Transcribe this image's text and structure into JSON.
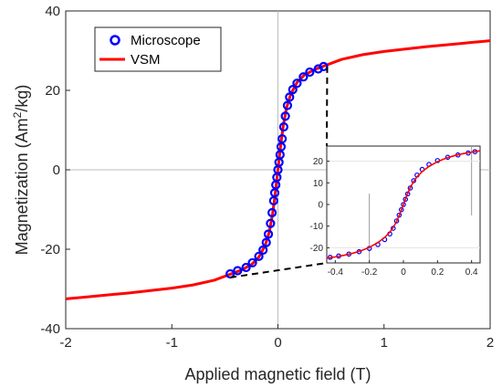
{
  "chart_data": [
    {
      "type": "line",
      "xlabel": "Applied magnetic field (T)",
      "ylabel_parts": [
        "Magnetization (Am",
        "2",
        "/kg)"
      ],
      "xlim": [
        -2,
        2
      ],
      "ylim": [
        -40,
        40
      ],
      "xticks": [
        "-2",
        "-1",
        "0",
        "1",
        "2"
      ],
      "yticks": [
        "-40",
        "-20",
        "0",
        "20",
        "40"
      ],
      "grid": "zero lines",
      "legend": {
        "placement": "top-left",
        "entries": [
          "Microscope",
          "VSM"
        ]
      },
      "series": [
        {
          "name": "Microscope",
          "style": "markers",
          "color": "#0000ff",
          "x": [
            -0.45,
            -0.38,
            -0.3,
            -0.24,
            -0.18,
            -0.14,
            -0.11,
            -0.09,
            -0.07,
            -0.055,
            -0.04,
            -0.03,
            -0.02,
            -0.01,
            0,
            0.01,
            0.02,
            0.03,
            0.04,
            0.055,
            0.07,
            0.09,
            0.11,
            0.14,
            0.18,
            0.24,
            0.3,
            0.38,
            0.43
          ],
          "y": [
            -26.2,
            -25.4,
            -24.6,
            -23.4,
            -21.8,
            -20.2,
            -18.3,
            -16.2,
            -13.5,
            -10.8,
            -7.8,
            -5.8,
            -3.8,
            -1.9,
            0,
            1.9,
            3.8,
            5.8,
            7.8,
            10.8,
            13.5,
            16.2,
            18.3,
            20.2,
            21.8,
            23.4,
            24.6,
            25.4,
            26.0
          ]
        },
        {
          "name": "VSM",
          "style": "line",
          "color": "#ff0000",
          "x": [
            -2,
            -1.8,
            -1.6,
            -1.4,
            -1.2,
            -1.0,
            -0.8,
            -0.6,
            -0.45,
            -0.35,
            -0.25,
            -0.18,
            -0.12,
            -0.08,
            -0.05,
            -0.03,
            0,
            0.03,
            0.05,
            0.08,
            0.12,
            0.18,
            0.25,
            0.35,
            0.45,
            0.6,
            0.8,
            1.0,
            1.2,
            1.4,
            1.6,
            1.8,
            2.0
          ],
          "y": [
            -32.5,
            -32.0,
            -31.5,
            -31.0,
            -30.4,
            -29.8,
            -29.0,
            -27.8,
            -26.3,
            -25.3,
            -23.9,
            -22.0,
            -19.0,
            -15.5,
            -11.0,
            -7.0,
            0,
            7.0,
            11.0,
            15.5,
            19.0,
            22.0,
            23.9,
            25.3,
            26.3,
            27.8,
            29.0,
            29.8,
            30.4,
            31.0,
            31.5,
            32.0,
            32.5
          ]
        }
      ]
    },
    {
      "type": "line",
      "role": "inset",
      "xlim": [
        -0.45,
        0.45
      ],
      "ylim": [
        -27,
        27
      ],
      "xticks": [
        "-0.4",
        "-0.2",
        "0",
        "0.2",
        "0.4"
      ],
      "yticks": [
        "-20",
        "-10",
        "0",
        "10",
        "20"
      ],
      "series": [
        {
          "name": "Microscope",
          "style": "markers",
          "color": "#0000ff",
          "x": [
            -0.43,
            -0.38,
            -0.32,
            -0.26,
            -0.2,
            -0.15,
            -0.11,
            -0.08,
            -0.06,
            -0.04,
            -0.025,
            -0.012,
            0,
            0.012,
            0.025,
            0.04,
            0.06,
            0.08,
            0.11,
            0.15,
            0.2,
            0.26,
            0.32,
            0.38,
            0.42
          ],
          "y": [
            -24.4,
            -23.8,
            -22.9,
            -21.8,
            -20.3,
            -18.5,
            -16.2,
            -13.6,
            -11.0,
            -7.6,
            -4.9,
            -2.4,
            0,
            2.4,
            4.9,
            7.6,
            11.0,
            13.6,
            16.2,
            18.5,
            20.3,
            21.8,
            22.9,
            23.8,
            24.4
          ]
        },
        {
          "name": "VSM",
          "style": "line",
          "color": "#ff0000",
          "x": [
            -0.45,
            -0.4,
            -0.35,
            -0.3,
            -0.25,
            -0.2,
            -0.15,
            -0.11,
            -0.08,
            -0.06,
            -0.04,
            -0.02,
            0,
            0.02,
            0.04,
            0.06,
            0.08,
            0.11,
            0.15,
            0.2,
            0.25,
            0.3,
            0.35,
            0.4,
            0.45
          ],
          "y": [
            -24.8,
            -24.2,
            -23.5,
            -22.6,
            -21.4,
            -19.8,
            -17.6,
            -15.2,
            -12.8,
            -10.6,
            -7.8,
            -4.2,
            0,
            4.2,
            7.8,
            10.6,
            12.8,
            15.2,
            17.6,
            19.8,
            21.4,
            22.6,
            23.5,
            24.2,
            24.8
          ]
        }
      ]
    }
  ]
}
